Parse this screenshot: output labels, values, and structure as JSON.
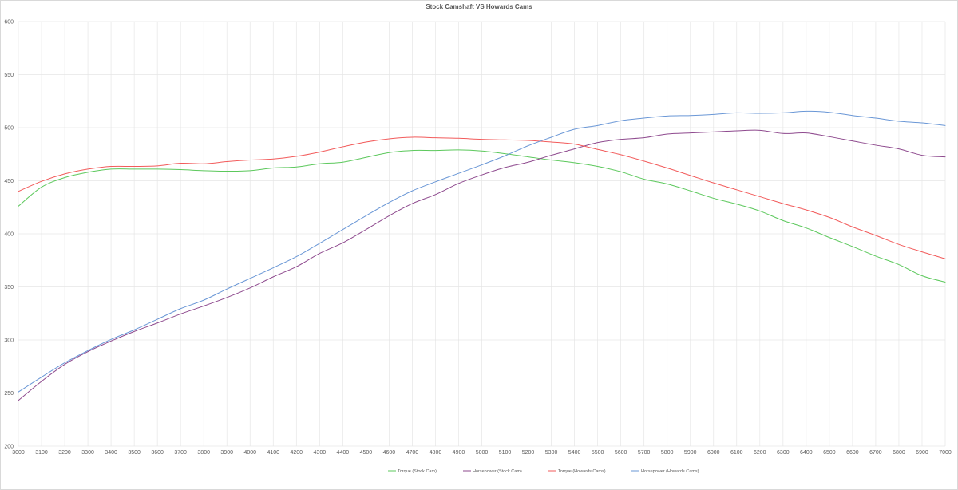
{
  "chart_data": {
    "type": "line",
    "title": "Stock Camshaft VS Howards Cams",
    "xlabel": "",
    "ylabel": "",
    "ylim": [
      200,
      600
    ],
    "yticks": [
      200,
      250,
      300,
      350,
      400,
      450,
      500,
      550,
      600
    ],
    "grid": true,
    "legend": "bottom",
    "x": [
      3000,
      3100,
      3200,
      3300,
      3400,
      3500,
      3600,
      3700,
      3800,
      3900,
      4000,
      4100,
      4200,
      4300,
      4400,
      4500,
      4600,
      4700,
      4800,
      4900,
      5000,
      5100,
      5200,
      5300,
      5400,
      5500,
      5600,
      5700,
      5800,
      5900,
      6000,
      6100,
      6200,
      6300,
      6400,
      6500,
      6600,
      6700,
      6800,
      6900,
      7000
    ],
    "series": [
      {
        "name": "Torque (Stock Cam)",
        "color": "#5cc85c",
        "values": [
          426,
          444,
          453,
          458,
          461,
          461,
          461,
          460.5,
          459.5,
          459,
          459.5,
          462,
          463,
          466,
          467.5,
          472,
          476.5,
          478.5,
          478.5,
          479,
          478,
          475.5,
          472.5,
          469.5,
          467,
          463.5,
          458.5,
          451.5,
          447,
          440.5,
          433.5,
          428,
          421.5,
          412.5,
          405.5,
          396.5,
          388,
          379,
          371,
          360.5,
          354.5
        ]
      },
      {
        "name": "Horsepower (Stock Cam)",
        "color": "#8e4a8e",
        "values": [
          243,
          261,
          277,
          289,
          299,
          308,
          316,
          324.5,
          332,
          340,
          349,
          359.5,
          369,
          381.5,
          391.5,
          404,
          417,
          428.5,
          437,
          447.5,
          455.5,
          462.5,
          467.5,
          474,
          480,
          486,
          489,
          490.5,
          494,
          495,
          496,
          497,
          497.5,
          494.5,
          495,
          491.5,
          487.5,
          483.5,
          480,
          474,
          472.5
        ]
      },
      {
        "name": "Torque (Howards Cams)",
        "color": "#f25b5b",
        "values": [
          440,
          449.5,
          456.5,
          461,
          463.5,
          463.5,
          464,
          466.5,
          466,
          468,
          469.5,
          470.5,
          473,
          477,
          482,
          486.5,
          489.5,
          491,
          490.5,
          490,
          489,
          488.5,
          488,
          486.5,
          484.5,
          479.5,
          474.5,
          468.5,
          462,
          455,
          448,
          441.5,
          435,
          428.5,
          422.5,
          415.5,
          406.5,
          398.5,
          390,
          383,
          376.5
        ]
      },
      {
        "name": "Horsepower (Howards Cams)",
        "color": "#6a97d6",
        "values": [
          251,
          265,
          278.5,
          290,
          300.5,
          309.5,
          319.5,
          329.5,
          337.5,
          348,
          358,
          368,
          378.5,
          391,
          404,
          417,
          429.5,
          440.5,
          449,
          457,
          465,
          473.5,
          483,
          491,
          498.5,
          502,
          506.5,
          509,
          511,
          511.5,
          512.5,
          514,
          513.5,
          514,
          515.5,
          514.5,
          511.5,
          509,
          506,
          504.5,
          502
        ]
      }
    ]
  }
}
